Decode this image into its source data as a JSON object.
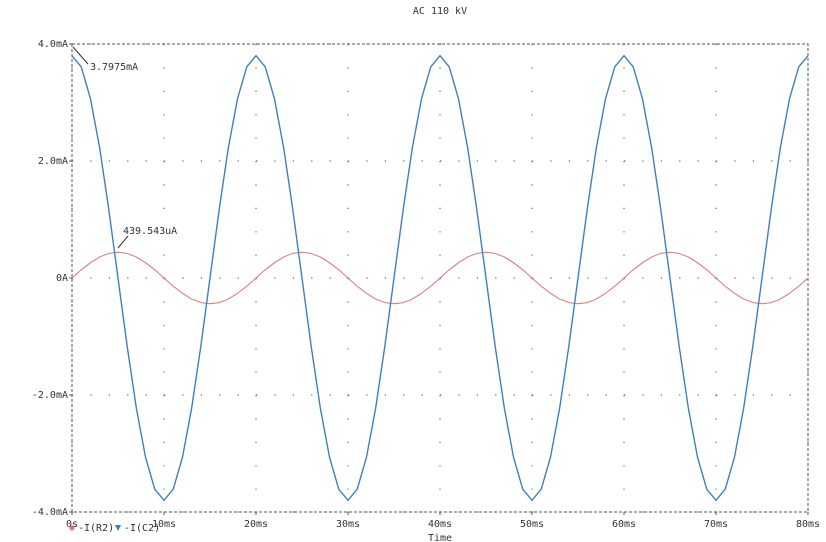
{
  "chart_data": {
    "type": "line",
    "title": "AC 110 kV",
    "x_label": "Time",
    "x": [
      0,
      1,
      2,
      3,
      4,
      5,
      6,
      7,
      8,
      9,
      10,
      11,
      12,
      13,
      14,
      15,
      16,
      17,
      18,
      19,
      20,
      21,
      22,
      23,
      24,
      25,
      26,
      27,
      28,
      29,
      30,
      31,
      32,
      33,
      34,
      35,
      36,
      37,
      38,
      39,
      40,
      41,
      42,
      43,
      44,
      45,
      46,
      47,
      48,
      49,
      50,
      51,
      52,
      53,
      54,
      55,
      56,
      57,
      58,
      59,
      60,
      61,
      62,
      63,
      64,
      65,
      66,
      67,
      68,
      69,
      70,
      71,
      72,
      73,
      74,
      75,
      76,
      77,
      78,
      79,
      80
    ],
    "series": [
      {
        "name": "-I(R2)",
        "color": "#e07272",
        "values": [
          0,
          0.14,
          0.26,
          0.36,
          0.42,
          0.44,
          0.42,
          0.36,
          0.26,
          0.14,
          0,
          -0.14,
          -0.26,
          -0.36,
          -0.42,
          -0.44,
          -0.42,
          -0.36,
          -0.26,
          -0.14,
          0,
          0.14,
          0.26,
          0.36,
          0.42,
          0.44,
          0.42,
          0.36,
          0.26,
          0.14,
          0,
          -0.14,
          -0.26,
          -0.36,
          -0.42,
          -0.44,
          -0.42,
          -0.36,
          -0.26,
          -0.14,
          0,
          0.14,
          0.26,
          0.36,
          0.42,
          0.44,
          0.42,
          0.36,
          0.26,
          0.14,
          0,
          -0.14,
          -0.26,
          -0.36,
          -0.42,
          -0.44,
          -0.42,
          -0.36,
          -0.26,
          -0.14,
          0,
          0.14,
          0.26,
          0.36,
          0.42,
          0.44,
          0.42,
          0.36,
          0.26,
          0.14,
          0,
          -0.14,
          -0.26,
          -0.36,
          -0.42,
          -0.44,
          -0.42,
          -0.36,
          -0.26,
          -0.14,
          0
        ]
      },
      {
        "name": "-I(C2)",
        "color": "#3d7fc0",
        "values": [
          3.7975,
          3.61,
          3.07,
          2.23,
          1.17,
          0,
          -1.17,
          -2.23,
          -3.07,
          -3.61,
          -3.8,
          -3.61,
          -3.07,
          -2.23,
          -1.17,
          0,
          1.17,
          2.23,
          3.07,
          3.61,
          3.8,
          3.61,
          3.07,
          2.23,
          1.17,
          0,
          -1.17,
          -2.23,
          -3.07,
          -3.61,
          -3.8,
          -3.61,
          -3.07,
          -2.23,
          -1.17,
          0,
          1.17,
          2.23,
          3.07,
          3.61,
          3.8,
          3.61,
          3.07,
          2.23,
          1.17,
          0,
          -1.17,
          -2.23,
          -3.07,
          -3.61,
          -3.8,
          -3.61,
          -3.07,
          -2.23,
          -1.17,
          0,
          1.17,
          2.23,
          3.07,
          3.61,
          3.8,
          3.61,
          3.07,
          2.23,
          1.17,
          0,
          -1.17,
          -2.23,
          -3.07,
          -3.61,
          -3.8,
          -3.61,
          -3.07,
          -2.23,
          -1.17,
          0,
          1.17,
          2.23,
          3.07,
          3.61,
          3.8
        ]
      }
    ],
    "annotations": [
      "3.7975mA",
      "439.543uA"
    ],
    "xlim": [
      0,
      80
    ],
    "xticks": [
      {
        "value": 0,
        "label": "0s"
      },
      {
        "value": 10,
        "label": "10ms"
      },
      {
        "value": 20,
        "label": "20ms"
      },
      {
        "value": 30,
        "label": "30ms"
      },
      {
        "value": 40,
        "label": "40ms"
      },
      {
        "value": 50,
        "label": "50ms"
      },
      {
        "value": 60,
        "label": "60ms"
      },
      {
        "value": 70,
        "label": "70ms"
      },
      {
        "value": 80,
        "label": "80ms"
      }
    ],
    "ylim": [
      -4,
      4
    ],
    "yticks": [
      {
        "value": -4,
        "label": "-4.0mA"
      },
      {
        "value": -2,
        "label": "-2.0mA"
      },
      {
        "value": 0,
        "label": "0A"
      },
      {
        "value": 2,
        "label": "2.0mA"
      },
      {
        "value": 4,
        "label": "4.0mA"
      }
    ],
    "grid": true
  }
}
